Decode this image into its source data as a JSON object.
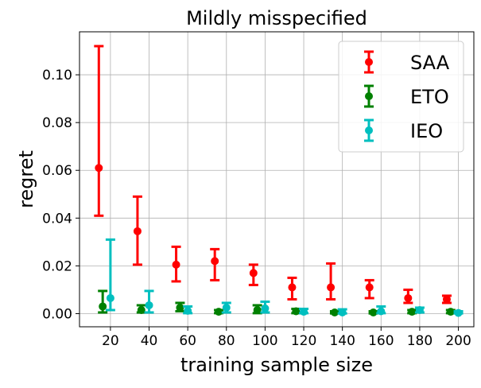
{
  "chart_data": {
    "type": "scatter",
    "title": "Mildly misspecified",
    "xlabel": "training sample size",
    "ylabel": "regret",
    "xlim": [
      4,
      208
    ],
    "ylim": [
      -0.0055,
      0.118
    ],
    "xticks": [
      20,
      40,
      60,
      80,
      100,
      120,
      140,
      160,
      180,
      200
    ],
    "xtick_labels": [
      "20",
      "40",
      "60",
      "80",
      "100",
      "120",
      "140",
      "160",
      "180",
      "200"
    ],
    "yticks": [
      0.0,
      0.02,
      0.04,
      0.06,
      0.08,
      0.1
    ],
    "ytick_labels": [
      "0.00",
      "0.02",
      "0.04",
      "0.06",
      "0.08",
      "0.10"
    ],
    "grid": true,
    "legend_position": "top-right",
    "x_offsets": {
      "SAA": -6,
      "ETO": -4,
      "IEO": 0
    },
    "series": [
      {
        "name": "SAA",
        "color": "#ff0000",
        "x": [
          20,
          40,
          60,
          80,
          100,
          120,
          140,
          160,
          180,
          200
        ],
        "values": [
          0.061,
          0.0345,
          0.0205,
          0.022,
          0.017,
          0.011,
          0.011,
          0.011,
          0.0065,
          0.006
        ],
        "lower": [
          0.041,
          0.0205,
          0.0135,
          0.014,
          0.012,
          0.006,
          0.006,
          0.0065,
          0.0045,
          0.0045
        ],
        "upper": [
          0.112,
          0.049,
          0.028,
          0.027,
          0.0205,
          0.015,
          0.021,
          0.014,
          0.01,
          0.0075
        ]
      },
      {
        "name": "ETO",
        "color": "#008000",
        "x": [
          20,
          40,
          60,
          80,
          100,
          120,
          140,
          160,
          180,
          200
        ],
        "values": [
          0.003,
          0.0015,
          0.0025,
          0.0008,
          0.0015,
          0.001,
          0.0005,
          0.0005,
          0.0008,
          0.0008
        ],
        "lower": [
          0.0005,
          0.0005,
          0.001,
          0.0002,
          0.0002,
          0.0002,
          0.0001,
          0.0001,
          0.0002,
          0.0002
        ],
        "upper": [
          0.0095,
          0.0035,
          0.0045,
          0.0015,
          0.0035,
          0.002,
          0.001,
          0.001,
          0.0015,
          0.0015
        ]
      },
      {
        "name": "IEO",
        "color": "#00bfbf",
        "x": [
          20,
          40,
          60,
          80,
          100,
          120,
          140,
          160,
          180,
          200
        ],
        "values": [
          0.0065,
          0.0035,
          0.0012,
          0.0025,
          0.0022,
          0.0008,
          0.0005,
          0.001,
          0.0015,
          0.0003
        ],
        "lower": [
          0.0015,
          0.0005,
          0.0002,
          0.0005,
          0.0005,
          0.0002,
          0.0001,
          0.0002,
          0.0005,
          0.0001
        ],
        "upper": [
          0.031,
          0.0095,
          0.003,
          0.0045,
          0.005,
          0.002,
          0.0018,
          0.003,
          0.0025,
          0.001
        ]
      }
    ]
  }
}
